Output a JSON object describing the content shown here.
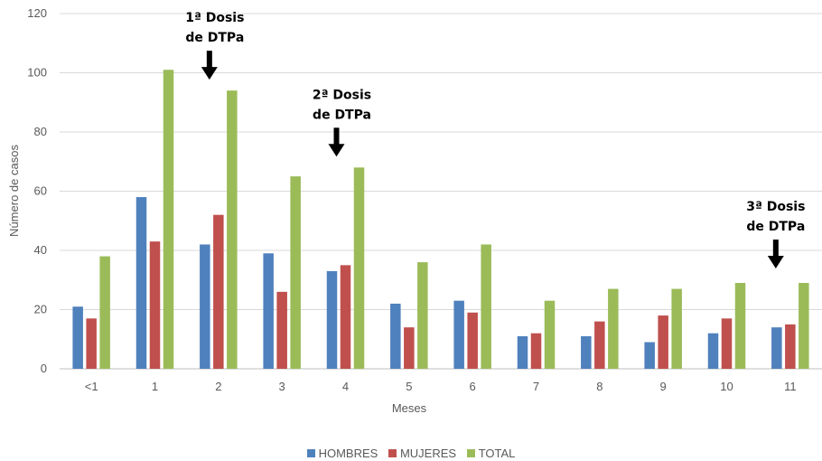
{
  "chart_data": {
    "type": "bar",
    "title": "",
    "xlabel": "Meses",
    "ylabel": "Número de casos",
    "ylim": [
      0,
      120
    ],
    "yticks": [
      0,
      20,
      40,
      60,
      80,
      100,
      120
    ],
    "grid": true,
    "legend_position": "bottom",
    "categories": [
      "<1",
      "1",
      "2",
      "3",
      "4",
      "5",
      "6",
      "7",
      "8",
      "9",
      "10",
      "11"
    ],
    "series": [
      {
        "name": "HOMBRES",
        "color": "#4F81BD",
        "values": [
          21,
          58,
          42,
          39,
          33,
          22,
          23,
          11,
          11,
          9,
          12,
          14
        ]
      },
      {
        "name": "MUJERES",
        "color": "#C0504D",
        "values": [
          17,
          43,
          52,
          26,
          35,
          14,
          19,
          12,
          16,
          18,
          17,
          15
        ]
      },
      {
        "name": "TOTAL",
        "color": "#9BBB59",
        "values": [
          38,
          101,
          94,
          65,
          68,
          36,
          42,
          23,
          27,
          27,
          29,
          29
        ]
      }
    ],
    "annotations": [
      {
        "category": "2",
        "lines": [
          "1ª Dosis",
          "de DTPa"
        ]
      },
      {
        "category": "4",
        "lines": [
          "2ª Dosis",
          "de DTPa"
        ]
      },
      {
        "category": "11",
        "lines": [
          "3ª Dosis",
          "de DTPa"
        ]
      }
    ]
  }
}
